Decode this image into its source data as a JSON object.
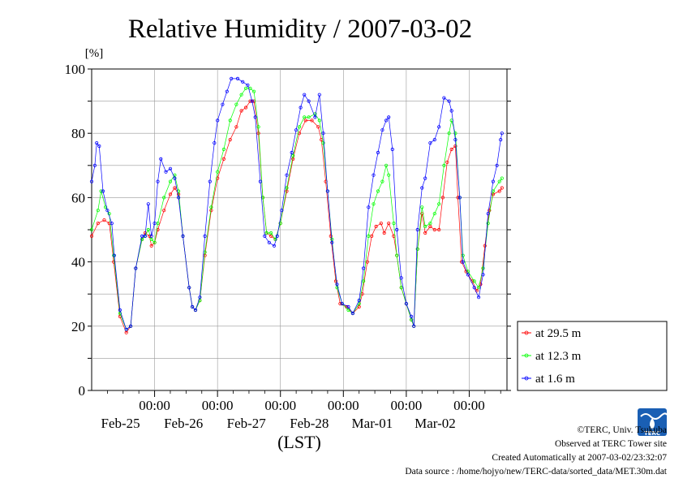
{
  "chart_data": {
    "type": "line",
    "title": "Relative Humidity / 2007-03-02",
    "ylabel": "[%]",
    "xlabel": "(LST)",
    "ylim": [
      0,
      100
    ],
    "yticks": [
      0,
      20,
      40,
      60,
      80,
      100
    ],
    "xlim": [
      0,
      6
    ],
    "x_unit": "days since 2007-02-25 00:00 LST",
    "xticks": [
      {
        "x": 1,
        "time": "00:00",
        "date": "Feb-25"
      },
      {
        "x": 2,
        "time": "00:00",
        "date": "Feb-26"
      },
      {
        "x": 3,
        "time": "00:00",
        "date": "Feb-27"
      },
      {
        "x": 4,
        "time": "00:00",
        "date": "Feb-28"
      },
      {
        "x": 5,
        "time": "00:00",
        "date": "Mar-01"
      },
      {
        "x": 6,
        "time": "00:00",
        "date": "Mar-02"
      }
    ],
    "grid": true,
    "legend_position": "outside-right-bottom",
    "series": [
      {
        "name": "at 29.5 m",
        "color": "#ff0000",
        "points": [
          [
            0.0,
            48
          ],
          [
            0.1,
            52
          ],
          [
            0.2,
            53
          ],
          [
            0.28,
            52
          ],
          [
            0.35,
            40
          ],
          [
            0.45,
            23
          ],
          [
            0.55,
            18
          ],
          [
            0.62,
            20
          ],
          [
            0.7,
            38
          ],
          [
            0.8,
            47
          ],
          [
            0.85,
            49
          ],
          [
            0.92,
            48
          ],
          [
            0.95,
            45
          ],
          [
            1.0,
            46
          ],
          [
            1.05,
            50
          ],
          [
            1.15,
            56
          ],
          [
            1.25,
            61
          ],
          [
            1.32,
            63
          ],
          [
            1.38,
            61
          ],
          [
            1.45,
            48
          ],
          [
            1.55,
            32
          ],
          [
            1.6,
            26
          ],
          [
            1.65,
            25
          ],
          [
            1.72,
            28
          ],
          [
            1.8,
            42
          ],
          [
            1.9,
            56
          ],
          [
            2.0,
            66
          ],
          [
            2.1,
            72
          ],
          [
            2.2,
            78
          ],
          [
            2.3,
            82
          ],
          [
            2.38,
            87
          ],
          [
            2.45,
            88
          ],
          [
            2.52,
            90
          ],
          [
            2.58,
            90
          ],
          [
            2.65,
            80
          ],
          [
            2.72,
            60
          ],
          [
            2.78,
            49
          ],
          [
            2.85,
            48
          ],
          [
            2.92,
            47
          ],
          [
            3.0,
            52
          ],
          [
            3.1,
            62
          ],
          [
            3.2,
            72
          ],
          [
            3.3,
            80
          ],
          [
            3.4,
            84
          ],
          [
            3.5,
            84
          ],
          [
            3.6,
            82
          ],
          [
            3.65,
            78
          ],
          [
            3.72,
            65
          ],
          [
            3.8,
            48
          ],
          [
            3.88,
            34
          ],
          [
            3.95,
            27
          ],
          [
            4.05,
            26
          ],
          [
            4.15,
            24
          ],
          [
            4.25,
            26
          ],
          [
            4.3,
            30
          ],
          [
            4.38,
            40
          ],
          [
            4.45,
            48
          ],
          [
            4.52,
            51
          ],
          [
            4.6,
            52
          ],
          [
            4.65,
            49
          ],
          [
            4.72,
            52
          ],
          [
            4.8,
            48
          ],
          [
            4.85,
            42
          ],
          [
            4.92,
            32
          ],
          [
            5.0,
            27
          ],
          [
            5.08,
            22
          ],
          [
            5.12,
            20
          ],
          [
            5.18,
            44
          ],
          [
            5.25,
            55
          ],
          [
            5.3,
            49
          ],
          [
            5.38,
            51
          ],
          [
            5.45,
            50
          ],
          [
            5.52,
            50
          ],
          [
            5.58,
            60
          ],
          [
            5.65,
            71
          ],
          [
            5.72,
            75
          ],
          [
            5.78,
            76
          ],
          [
            5.82,
            60
          ],
          [
            5.88,
            40
          ],
          [
            5.95,
            37
          ],
          [
            6.05,
            34
          ],
          [
            6.12,
            31
          ],
          [
            6.18,
            33
          ],
          [
            6.25,
            45
          ],
          [
            6.32,
            56
          ],
          [
            6.38,
            61
          ],
          [
            6.48,
            62
          ],
          [
            6.52,
            63
          ]
        ]
      },
      {
        "name": "at 12.3 m",
        "color": "#00ff00",
        "points": [
          [
            0.0,
            50
          ],
          [
            0.1,
            56
          ],
          [
            0.15,
            62
          ],
          [
            0.22,
            57
          ],
          [
            0.28,
            55
          ],
          [
            0.35,
            42
          ],
          [
            0.45,
            24
          ],
          [
            0.55,
            19
          ],
          [
            0.62,
            20
          ],
          [
            0.7,
            38
          ],
          [
            0.8,
            47
          ],
          [
            0.85,
            48
          ],
          [
            0.9,
            50
          ],
          [
            0.95,
            47
          ],
          [
            1.0,
            46
          ],
          [
            1.05,
            52
          ],
          [
            1.15,
            60
          ],
          [
            1.25,
            65
          ],
          [
            1.32,
            67
          ],
          [
            1.38,
            62
          ],
          [
            1.45,
            48
          ],
          [
            1.55,
            32
          ],
          [
            1.6,
            26
          ],
          [
            1.65,
            25
          ],
          [
            1.72,
            28
          ],
          [
            1.8,
            43
          ],
          [
            1.9,
            57
          ],
          [
            2.0,
            68
          ],
          [
            2.1,
            75
          ],
          [
            2.2,
            84
          ],
          [
            2.3,
            89
          ],
          [
            2.38,
            92
          ],
          [
            2.45,
            94
          ],
          [
            2.52,
            94
          ],
          [
            2.58,
            93
          ],
          [
            2.65,
            82
          ],
          [
            2.72,
            60
          ],
          [
            2.78,
            49
          ],
          [
            2.85,
            49
          ],
          [
            2.92,
            47
          ],
          [
            3.0,
            52
          ],
          [
            3.1,
            63
          ],
          [
            3.2,
            73
          ],
          [
            3.3,
            82
          ],
          [
            3.38,
            85
          ],
          [
            3.45,
            85
          ],
          [
            3.55,
            86
          ],
          [
            3.62,
            84
          ],
          [
            3.68,
            77
          ],
          [
            3.75,
            62
          ],
          [
            3.82,
            47
          ],
          [
            3.9,
            32
          ],
          [
            3.98,
            27
          ],
          [
            4.08,
            25
          ],
          [
            4.15,
            24
          ],
          [
            4.25,
            27
          ],
          [
            4.32,
            34
          ],
          [
            4.4,
            48
          ],
          [
            4.48,
            58
          ],
          [
            4.55,
            62
          ],
          [
            4.62,
            65
          ],
          [
            4.68,
            70
          ],
          [
            4.72,
            67
          ],
          [
            4.8,
            52
          ],
          [
            4.85,
            42
          ],
          [
            4.92,
            32
          ],
          [
            5.0,
            27
          ],
          [
            5.08,
            22
          ],
          [
            5.12,
            20
          ],
          [
            5.18,
            44
          ],
          [
            5.25,
            57
          ],
          [
            5.3,
            51
          ],
          [
            5.38,
            52
          ],
          [
            5.45,
            55
          ],
          [
            5.52,
            58
          ],
          [
            5.6,
            70
          ],
          [
            5.68,
            80
          ],
          [
            5.72,
            84
          ],
          [
            5.78,
            80
          ],
          [
            5.85,
            60
          ],
          [
            5.9,
            42
          ],
          [
            5.98,
            37
          ],
          [
            6.08,
            34
          ],
          [
            6.15,
            32
          ],
          [
            6.22,
            38
          ],
          [
            6.3,
            52
          ],
          [
            6.38,
            62
          ],
          [
            6.48,
            65
          ],
          [
            6.52,
            66
          ]
        ]
      },
      {
        "name": "at 1.6 m",
        "color": "#0000ff",
        "points": [
          [
            0.0,
            65
          ],
          [
            0.05,
            70
          ],
          [
            0.08,
            77
          ],
          [
            0.12,
            76
          ],
          [
            0.18,
            62
          ],
          [
            0.25,
            56
          ],
          [
            0.32,
            52
          ],
          [
            0.36,
            42
          ],
          [
            0.45,
            25
          ],
          [
            0.55,
            19
          ],
          [
            0.62,
            20
          ],
          [
            0.7,
            38
          ],
          [
            0.8,
            48
          ],
          [
            0.85,
            48
          ],
          [
            0.9,
            58
          ],
          [
            0.95,
            48
          ],
          [
            1.0,
            52
          ],
          [
            1.05,
            65
          ],
          [
            1.1,
            72
          ],
          [
            1.18,
            68
          ],
          [
            1.25,
            69
          ],
          [
            1.32,
            66
          ],
          [
            1.38,
            60
          ],
          [
            1.45,
            48
          ],
          [
            1.55,
            32
          ],
          [
            1.6,
            26
          ],
          [
            1.65,
            25
          ],
          [
            1.72,
            29
          ],
          [
            1.8,
            48
          ],
          [
            1.88,
            65
          ],
          [
            1.95,
            77
          ],
          [
            2.0,
            84
          ],
          [
            2.08,
            89
          ],
          [
            2.15,
            93
          ],
          [
            2.22,
            97
          ],
          [
            2.32,
            97
          ],
          [
            2.4,
            96
          ],
          [
            2.48,
            95
          ],
          [
            2.55,
            90
          ],
          [
            2.6,
            85
          ],
          [
            2.68,
            65
          ],
          [
            2.75,
            48
          ],
          [
            2.82,
            46
          ],
          [
            2.9,
            45
          ],
          [
            2.95,
            48
          ],
          [
            3.02,
            56
          ],
          [
            3.1,
            67
          ],
          [
            3.18,
            74
          ],
          [
            3.25,
            81
          ],
          [
            3.32,
            88
          ],
          [
            3.38,
            92
          ],
          [
            3.45,
            90
          ],
          [
            3.55,
            85
          ],
          [
            3.62,
            92
          ],
          [
            3.68,
            80
          ],
          [
            3.75,
            62
          ],
          [
            3.82,
            46
          ],
          [
            3.9,
            33
          ],
          [
            3.98,
            27
          ],
          [
            4.08,
            26
          ],
          [
            4.15,
            24
          ],
          [
            4.25,
            28
          ],
          [
            4.32,
            38
          ],
          [
            4.4,
            57
          ],
          [
            4.48,
            67
          ],
          [
            4.55,
            74
          ],
          [
            4.62,
            81
          ],
          [
            4.68,
            84
          ],
          [
            4.72,
            85
          ],
          [
            4.78,
            75
          ],
          [
            4.85,
            50
          ],
          [
            4.92,
            35
          ],
          [
            5.0,
            27
          ],
          [
            5.08,
            23
          ],
          [
            5.12,
            20
          ],
          [
            5.18,
            50
          ],
          [
            5.25,
            63
          ],
          [
            5.3,
            66
          ],
          [
            5.38,
            77
          ],
          [
            5.45,
            78
          ],
          [
            5.52,
            82
          ],
          [
            5.6,
            91
          ],
          [
            5.68,
            90
          ],
          [
            5.72,
            87
          ],
          [
            5.78,
            78
          ],
          [
            5.85,
            60
          ],
          [
            5.9,
            40
          ],
          [
            5.98,
            36
          ],
          [
            6.08,
            32
          ],
          [
            6.15,
            29
          ],
          [
            6.22,
            36
          ],
          [
            6.3,
            55
          ],
          [
            6.38,
            65
          ],
          [
            6.44,
            70
          ],
          [
            6.5,
            78
          ],
          [
            6.52,
            80
          ]
        ]
      }
    ]
  },
  "footer": {
    "copyright": "©TERC, Univ. Tsukuba",
    "observed": "Observed at TERC Tower site",
    "created": "Created Automatically at 2007-03-02/23:32:07",
    "source": "Data source : /home/hojyo/new/TERC-data/sorted_data/MET.30m.dat"
  },
  "logo": {
    "text": "TERC",
    "color": "#1a5fb4"
  }
}
